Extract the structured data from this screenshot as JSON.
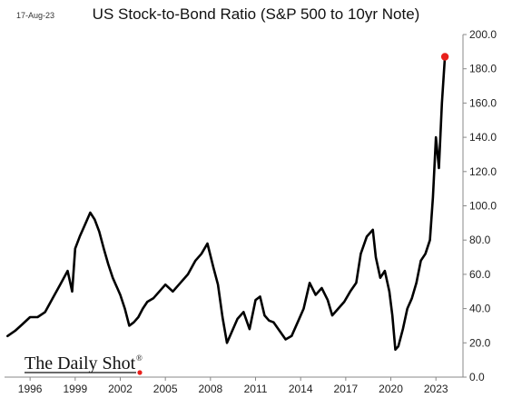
{
  "header": {
    "date": "17-Aug-23",
    "title": "US Stock-to-Bond Ratio (S&P 500 to 10yr Note)"
  },
  "branding": {
    "logo_text": "The Daily Shot",
    "registered_mark": "®"
  },
  "colors": {
    "line": "#000000",
    "marker": "#e8201c",
    "grid": "#d9d9d9",
    "axis_text": "#222222"
  },
  "chart_data": {
    "type": "line",
    "title": "US Stock-to-Bond Ratio (S&P 500 to 10yr Note)",
    "xlabel": "",
    "ylabel": "",
    "xlim": [
      1994.3,
      2024.8
    ],
    "ylim": [
      0,
      200
    ],
    "grid": false,
    "y_ticks": [
      0,
      20,
      40,
      60,
      80,
      100,
      120,
      140,
      160,
      180,
      200
    ],
    "y_tick_labels": [
      "0.0",
      "20.0",
      "40.0",
      "60.0",
      "80.0",
      "100.0",
      "120.0",
      "140.0",
      "160.0",
      "180.0",
      "200.0"
    ],
    "x_ticks": [
      1996,
      1999,
      2002,
      2005,
      2008,
      2011,
      2014,
      2017,
      2020,
      2023
    ],
    "x_tick_labels": [
      "1996",
      "1999",
      "2002",
      "2005",
      "2008",
      "2011",
      "2014",
      "2017",
      "2020",
      "2023"
    ],
    "series": [
      {
        "x": [
          1994.5,
          1995.0,
          1995.5,
          1996.0,
          1996.5,
          1997.0,
          1997.5,
          1998.0,
          1998.5,
          1998.8,
          1999.0,
          1999.3,
          1999.6,
          2000.0,
          2000.3,
          2000.6,
          2000.9,
          2001.2,
          2001.5,
          2001.8,
          2002.0,
          2002.3,
          2002.6,
          2002.9,
          2003.2,
          2003.5,
          2003.8,
          2004.2,
          2004.6,
          2005.0,
          2005.5,
          2006.0,
          2006.5,
          2007.0,
          2007.4,
          2007.8,
          2008.2,
          2008.5,
          2008.8,
          2009.1,
          2009.4,
          2009.8,
          2010.2,
          2010.6,
          2011.0,
          2011.3,
          2011.6,
          2011.9,
          2012.2,
          2012.6,
          2013.0,
          2013.4,
          2013.8,
          2014.2,
          2014.6,
          2015.0,
          2015.4,
          2015.8,
          2016.1,
          2016.5,
          2016.9,
          2017.3,
          2017.7,
          2018.0,
          2018.4,
          2018.8,
          2019.0,
          2019.3,
          2019.6,
          2019.9,
          2020.1,
          2020.3,
          2020.5,
          2020.8,
          2021.1,
          2021.4,
          2021.7,
          2022.0,
          2022.3,
          2022.6,
          2022.8,
          2023.0,
          2023.2,
          2023.4,
          2023.6
        ],
        "values": [
          24,
          27,
          31,
          35,
          35,
          38,
          46,
          54,
          62,
          50,
          75,
          82,
          88,
          96,
          92,
          85,
          75,
          66,
          58,
          52,
          48,
          40,
          30,
          32,
          35,
          40,
          44,
          46,
          50,
          54,
          50,
          55,
          60,
          68,
          72,
          78,
          64,
          54,
          35,
          20,
          26,
          34,
          38,
          28,
          45,
          47,
          36,
          33,
          32,
          27,
          22,
          24,
          32,
          40,
          55,
          48,
          52,
          45,
          36,
          40,
          44,
          50,
          55,
          72,
          82,
          86,
          70,
          58,
          62,
          50,
          36,
          16,
          18,
          28,
          40,
          46,
          55,
          68,
          72,
          80,
          105,
          140,
          122,
          160,
          187
        ]
      }
    ],
    "last_point": {
      "x": 2023.6,
      "y": 187
    }
  }
}
